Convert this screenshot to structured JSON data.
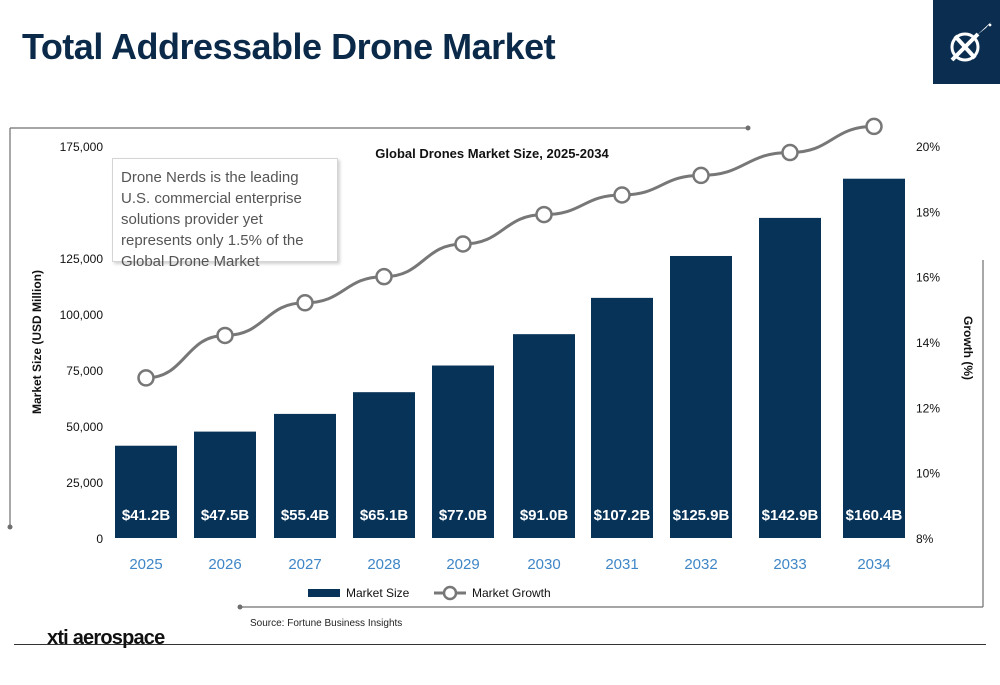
{
  "page": {
    "title": "Total Addressable Drone Market",
    "callout": "Drone Nerds is the leading U.S. commercial enterprise solutions provider yet represents only 1.5% of the Global Drone Market",
    "source": "Source: Fortune Business Insights",
    "brand": "xti aerospace"
  },
  "colors": {
    "bar": "#083358",
    "line": "#777777",
    "year_label": "#3f86c6",
    "title": "#0b2a4a"
  },
  "chart_data": {
    "type": "bar",
    "title": "Global Drones Market Size, 2025-2034",
    "categories": [
      "2025",
      "2026",
      "2027",
      "2028",
      "2029",
      "2030",
      "2031",
      "2032",
      "2033",
      "2034"
    ],
    "series": [
      {
        "name": "Market Size",
        "type": "bar",
        "axis": "left",
        "values": [
          41200,
          47500,
          55400,
          65100,
          77000,
          91000,
          107200,
          125900,
          142900,
          160400
        ],
        "labels": [
          "$41.2B",
          "$47.5B",
          "$55.4B",
          "$65.1B",
          "$77.0B",
          "$91.0B",
          "$107.2B",
          "$125.9B",
          "$142.9B",
          "$160.4B"
        ]
      },
      {
        "name": "Market Growth",
        "type": "line",
        "axis": "right",
        "values": [
          12.9,
          14.2,
          15.2,
          16.0,
          17.0,
          17.9,
          18.5,
          19.1,
          19.8,
          20.6
        ]
      }
    ],
    "ylabel": "Market Size (USD Million)",
    "y2label": "Growth (%)",
    "ylim": [
      0,
      175000
    ],
    "y2lim": [
      8,
      20
    ],
    "yticks": [
      "0",
      "25,000",
      "50,000",
      "75,000",
      "100,000",
      "125,000",
      "175,000"
    ],
    "yticks_values": [
      0,
      25000,
      50000,
      75000,
      100000,
      125000,
      175000
    ],
    "y2ticks": [
      "8%",
      "10%",
      "12%",
      "14%",
      "16%",
      "18%",
      "20%"
    ],
    "y2ticks_values": [
      8,
      10,
      12,
      14,
      16,
      18,
      20
    ],
    "legend": [
      "Market Size",
      "Market Growth"
    ],
    "legend_position": "bottom"
  }
}
